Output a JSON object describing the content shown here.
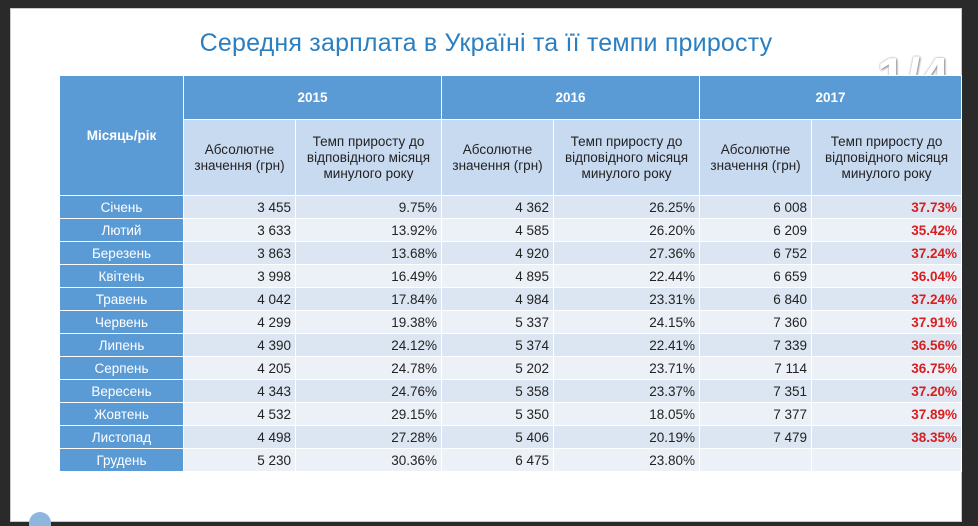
{
  "title": "Середня зарплата в Україні та її темпи приросту",
  "pager": "1/4",
  "table": {
    "month_header": "Місяць/рік",
    "years": [
      "2015",
      "2016",
      "2017"
    ],
    "sub_abs": "Абсолютне значення (грн)",
    "sub_rate": "Темп приросту до відповідного місяця минулого року",
    "rows": [
      {
        "month": "Січень",
        "v2015": "3 455",
        "r2015": "9.75%",
        "v2016": "4 362",
        "r2016": "26.25%",
        "v2017": "6 008",
        "r2017": "37.73%"
      },
      {
        "month": "Лютий",
        "v2015": "3 633",
        "r2015": "13.92%",
        "v2016": "4 585",
        "r2016": "26.20%",
        "v2017": "6 209",
        "r2017": "35.42%"
      },
      {
        "month": "Березень",
        "v2015": "3 863",
        "r2015": "13.68%",
        "v2016": "4 920",
        "r2016": "27.36%",
        "v2017": "6 752",
        "r2017": "37.24%"
      },
      {
        "month": "Квітень",
        "v2015": "3 998",
        "r2015": "16.49%",
        "v2016": "4 895",
        "r2016": "22.44%",
        "v2017": "6 659",
        "r2017": "36.04%"
      },
      {
        "month": "Травень",
        "v2015": "4 042",
        "r2015": "17.84%",
        "v2016": "4 984",
        "r2016": "23.31%",
        "v2017": "6 840",
        "r2017": "37.24%"
      },
      {
        "month": "Червень",
        "v2015": "4 299",
        "r2015": "19.38%",
        "v2016": "5 337",
        "r2016": "24.15%",
        "v2017": "7 360",
        "r2017": "37.91%"
      },
      {
        "month": "Липень",
        "v2015": "4 390",
        "r2015": "24.12%",
        "v2016": "5 374",
        "r2016": "22.41%",
        "v2017": "7 339",
        "r2017": "36.56%"
      },
      {
        "month": "Серпень",
        "v2015": "4 205",
        "r2015": "24.78%",
        "v2016": "5 202",
        "r2016": "23.71%",
        "v2017": "7 114",
        "r2017": "36.75%"
      },
      {
        "month": "Вересень",
        "v2015": "4 343",
        "r2015": "24.76%",
        "v2016": "5 358",
        "r2016": "23.37%",
        "v2017": "7 351",
        "r2017": "37.20%"
      },
      {
        "month": "Жовтень",
        "v2015": "4 532",
        "r2015": "29.15%",
        "v2016": "5 350",
        "r2016": "18.05%",
        "v2017": "7 377",
        "r2017": "37.89%"
      },
      {
        "month": "Листопад",
        "v2015": "4 498",
        "r2015": "27.28%",
        "v2016": "5 406",
        "r2016": "20.19%",
        "v2017": "7 479",
        "r2017": "38.35%"
      },
      {
        "month": "Грудень",
        "v2015": "5 230",
        "r2015": "30.36%",
        "v2016": "6 475",
        "r2016": "23.80%",
        "v2017": "",
        "r2017": ""
      }
    ]
  },
  "colors": {
    "title": "#2b7fc0",
    "header": "#5b9bd5",
    "highlight": "#d81e1e"
  }
}
